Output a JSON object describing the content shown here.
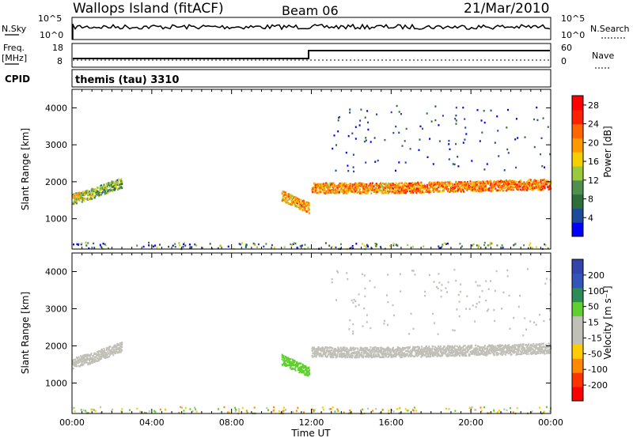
{
  "header": {
    "station": "Wallops Island (fitACF)",
    "beam": "Beam 06",
    "date": "21/Mar/2010"
  },
  "ancillary": {
    "nsky_label": "N.Sky",
    "nsky_ticks": [
      "10^5",
      "10^0"
    ],
    "nsearch_label": "N.Search",
    "nsearch_ticks": [
      "10^5",
      "10^0"
    ],
    "freq_label": "Freq.",
    "freq_unit": "[MHz]",
    "freq_ticks": [
      "18",
      "8"
    ],
    "nave_label": "Nave",
    "nave_ticks": [
      "60",
      "0"
    ],
    "cpid_label": "CPID",
    "cpid_value": "themis (tau) 3310"
  },
  "colors": {
    "power": [
      "#0000ff",
      "#1e4a9a",
      "#2d6e3b",
      "#4f8f4f",
      "#9ac93b",
      "#f5d000",
      "#ff9900",
      "#ff6600",
      "#ff2200",
      "#ff0000"
    ],
    "velocity": [
      "#3344aa",
      "#3355bb",
      "#2e8b57",
      "#5fd02f",
      "#c8c8c8",
      "#c8c8c8",
      "#ffcc00",
      "#ff8800",
      "#ff3300",
      "#ff0000"
    ],
    "ground_scatter": "#c0c0b8"
  },
  "chart_data": [
    {
      "type": "heatmap",
      "title": "",
      "xlabel": "",
      "ylabel": "Slant Range [km]",
      "x_ticks": [
        "00:00",
        "04:00",
        "08:00",
        "12:00",
        "16:00",
        "20:00",
        "00:00"
      ],
      "xlim_hours": [
        0,
        24
      ],
      "y_ticks": [
        1000,
        2000,
        3000,
        4000
      ],
      "ylim": [
        180,
        4500
      ],
      "colorbar_label": "Power [dB]",
      "colorbar_ticks": [
        4,
        8,
        12,
        16,
        20,
        24,
        28
      ],
      "colorbar_range": [
        0,
        30
      ],
      "backscatter_bands": [
        {
          "start_h": 0.0,
          "end_h": 1.0,
          "range_start": 1550,
          "range_end": 1700,
          "power": 14
        },
        {
          "start_h": 1.0,
          "end_h": 2.5,
          "range_start": 1700,
          "range_end": 2000,
          "power": 10
        },
        {
          "start_h": 10.5,
          "end_h": 11.9,
          "range_start": 1650,
          "range_end": 1300,
          "power": 18
        },
        {
          "start_h": 12.0,
          "end_h": 16.0,
          "range_start": 1850,
          "range_end": 1850,
          "power": 18
        },
        {
          "start_h": 16.0,
          "end_h": 24.0,
          "range_start": 1850,
          "range_end": 1950,
          "power": 20
        }
      ]
    },
    {
      "type": "heatmap",
      "title": "",
      "xlabel": "Time UT",
      "ylabel": "Slant Range [km]",
      "x_ticks": [
        "00:00",
        "04:00",
        "08:00",
        "12:00",
        "16:00",
        "20:00",
        "00:00"
      ],
      "xlim_hours": [
        0,
        24
      ],
      "y_ticks": [
        1000,
        2000,
        3000,
        4000
      ],
      "ylim": [
        180,
        4500
      ],
      "colorbar_label": "Velocity [m s⁻¹]",
      "colorbar_ticks": [
        200,
        100,
        50,
        15,
        -15,
        -50,
        -100,
        -200
      ],
      "colorbar_range": [
        -250,
        250
      ],
      "backscatter_bands": [
        {
          "start_h": 0.0,
          "end_h": 1.0,
          "range_start": 1550,
          "range_end": 1700,
          "velocity": 0
        },
        {
          "start_h": 1.0,
          "end_h": 2.5,
          "range_start": 1700,
          "range_end": 2000,
          "velocity": 0
        },
        {
          "start_h": 10.5,
          "end_h": 11.9,
          "range_start": 1650,
          "range_end": 1300,
          "velocity": 40
        },
        {
          "start_h": 12.0,
          "end_h": 16.0,
          "range_start": 1850,
          "range_end": 1850,
          "velocity": 0
        },
        {
          "start_h": 16.0,
          "end_h": 24.0,
          "range_start": 1850,
          "range_end": 1950,
          "velocity": 0
        }
      ]
    }
  ]
}
